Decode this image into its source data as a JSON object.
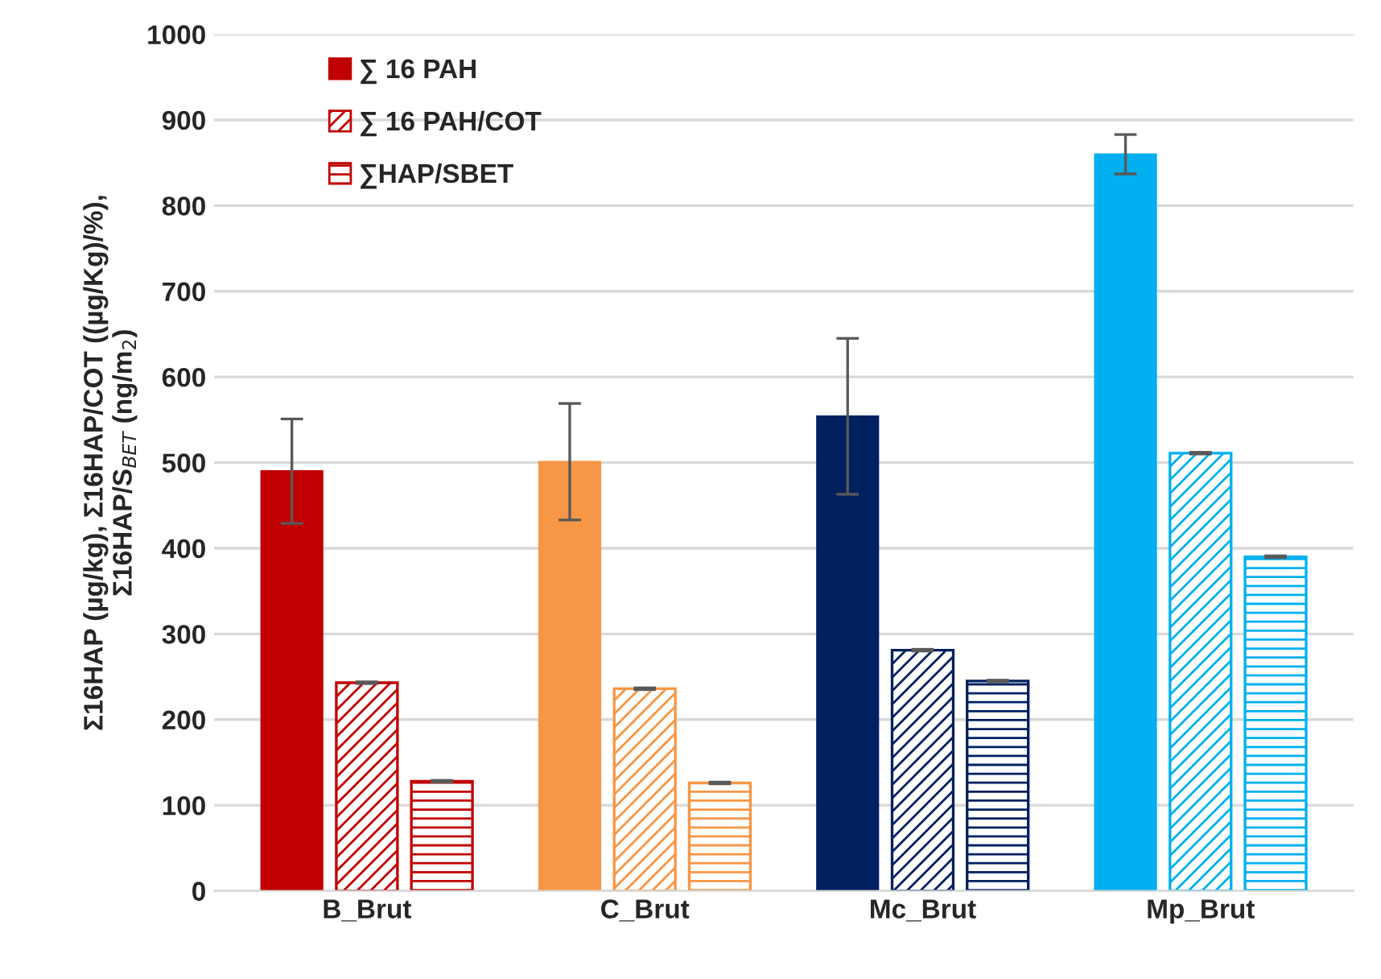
{
  "chart_data": {
    "type": "bar",
    "ylabel": "Σ16HAP (µg/kg), Σ16HAP/COT ((µg/Kg)/%),\nΣ16HAP/S$_{BET}$ (ng/m$_{2}$)",
    "categories": [
      "B_Brut",
      "C_Brut",
      "Mc_Brut",
      "Mp_Brut"
    ],
    "series": [
      {
        "name": "∑ 16 PAH",
        "colors": [
          "#c00000",
          "#f79646",
          "#002060",
          "#00b0f0"
        ],
        "values": [
          490,
          501,
          554,
          860
        ],
        "errors": [
          61,
          68,
          91,
          23
        ]
      },
      {
        "name": "∑ 16 PAH/COT",
        "colors": [
          "#c00000",
          "#f79646",
          "#002060",
          "#00b0f0"
        ],
        "values": [
          243,
          236,
          281,
          511
        ],
        "errors": [
          1,
          1,
          1,
          1
        ]
      },
      {
        "name": "∑HAP/SBET",
        "colors": [
          "#c00000",
          "#f79646",
          "#002060",
          "#00b0f0"
        ],
        "values": [
          128,
          126,
          245,
          390
        ],
        "errors": [
          1,
          1,
          1,
          1
        ]
      }
    ],
    "ylim": [
      0,
      1000
    ],
    "yticks": [
      0,
      100,
      200,
      300,
      400,
      500,
      600,
      700,
      800,
      900,
      1000
    ],
    "grid": "y",
    "legend": "top left"
  }
}
